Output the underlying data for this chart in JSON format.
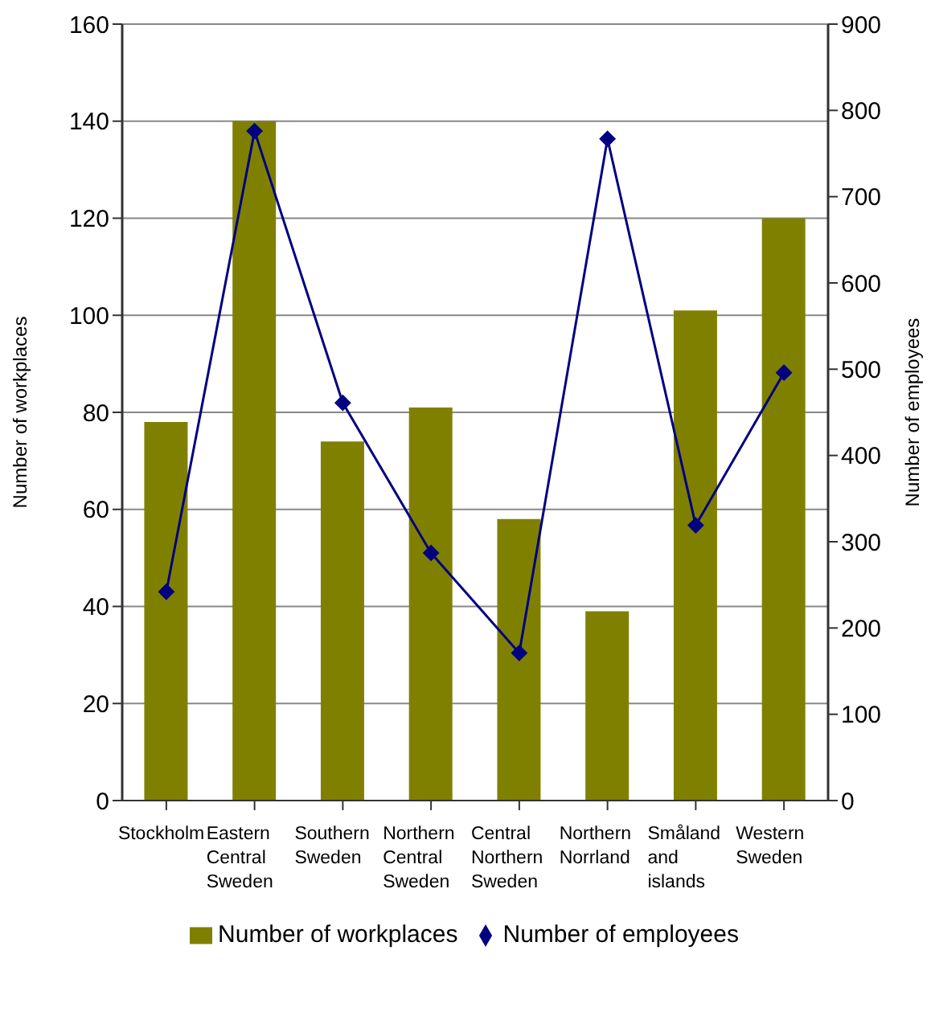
{
  "chart_data": {
    "type": "bar",
    "categories": [
      "Stockholm",
      "Eastern Central Sweden",
      "Southern Sweden",
      "Northern Central Sweden",
      "Central Northern Sweden",
      "Northern Norrland",
      "Småland and islands",
      "Western Sweden"
    ],
    "series": [
      {
        "name": "Number of workplaces",
        "color": "#808000",
        "values": [
          78,
          140,
          74,
          81,
          58,
          39,
          101,
          120
        ]
      },
      {
        "name": "Number of employees",
        "type": "line",
        "axis": "y2",
        "color": "#000080",
        "values": [
          242,
          776,
          461,
          287,
          171,
          767,
          319,
          496
        ]
      }
    ],
    "ylabel": "Number of workplaces",
    "y2label": "Number of employees",
    "ylim": [
      0,
      160
    ],
    "yticks": [
      0,
      20,
      40,
      60,
      80,
      100,
      120,
      140,
      160
    ],
    "y2lim": [
      0,
      900
    ],
    "y2ticks": [
      0,
      100,
      200,
      300,
      400,
      500,
      600,
      700,
      800,
      900
    ],
    "grid": "y",
    "legend": "bottom",
    "marker": "diamond",
    "line_style": "solid"
  }
}
